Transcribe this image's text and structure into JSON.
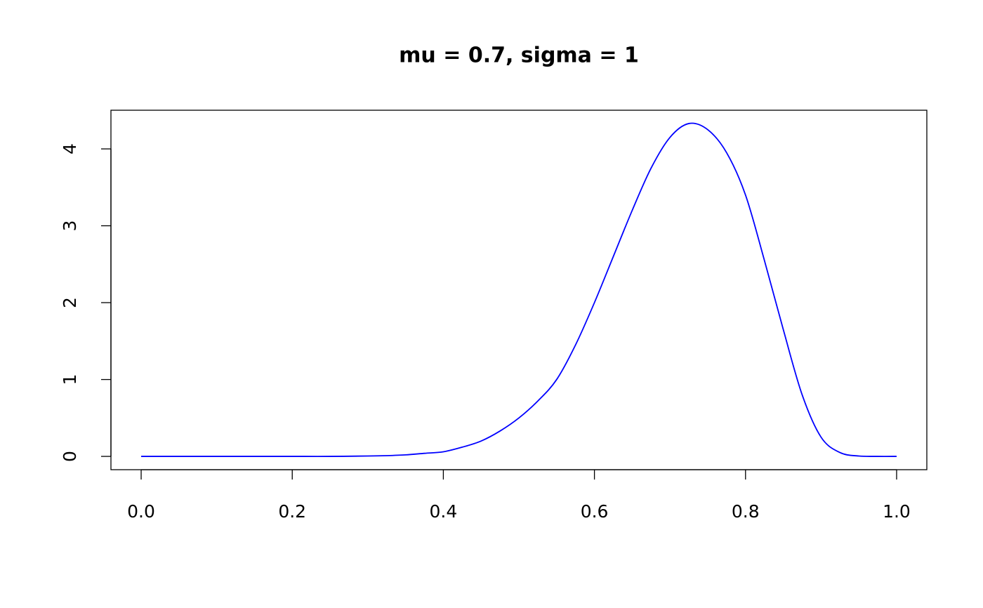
{
  "chart_data": {
    "type": "line",
    "title": "mu = 0.7, sigma = 1",
    "x": [
      0,
      0.05,
      0.1,
      0.15,
      0.2,
      0.25,
      0.3,
      0.325,
      0.35,
      0.375,
      0.4,
      0.425,
      0.45,
      0.475,
      0.5,
      0.525,
      0.55,
      0.575,
      0.6,
      0.625,
      0.65,
      0.675,
      0.7,
      0.725,
      0.75,
      0.775,
      0.8,
      0.825,
      0.85,
      0.875,
      0.9,
      0.925,
      0.95,
      0.975,
      1
    ],
    "series": [
      {
        "color": "#0000ff",
        "values": [
          0,
          0,
          0,
          0,
          0,
          0,
          0.005,
          0.01,
          0.02,
          0.04,
          0.06,
          0.12,
          0.2,
          0.33,
          0.5,
          0.72,
          1.0,
          1.45,
          2.0,
          2.6,
          3.2,
          3.75,
          4.15,
          4.33,
          4.25,
          3.95,
          3.4,
          2.55,
          1.65,
          0.8,
          0.25,
          0.05,
          0.005,
          0,
          0
        ]
      }
    ],
    "xlim": [
      -0.04,
      1.04
    ],
    "xticks": [
      {
        "value": 0,
        "label": "0.0"
      },
      0.2,
      0.4,
      0.6,
      0.8,
      {
        "value": 1,
        "label": "1.0"
      }
    ],
    "ylim": [
      -0.173,
      4.503
    ],
    "yticks": [
      0,
      1,
      2,
      3,
      4
    ]
  }
}
